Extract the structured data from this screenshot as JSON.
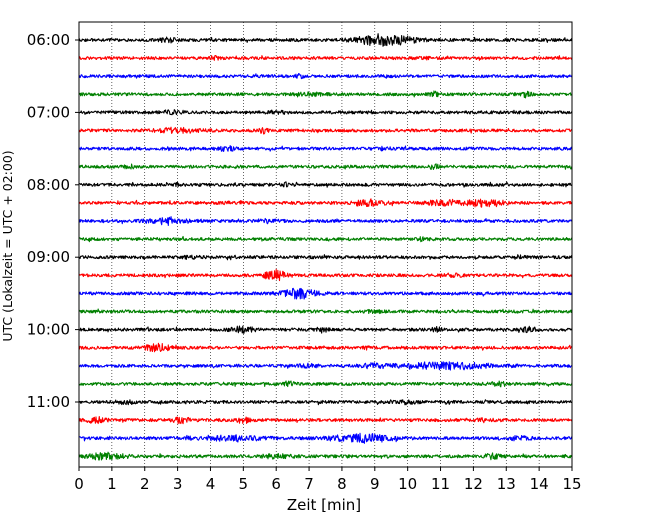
{
  "chart_data": {
    "type": "line",
    "title": "",
    "xlabel": "Zeit  [min]",
    "ylabel": "UTC (Lokalzeit = UTC + 02:00)",
    "xlim": [
      0,
      15
    ],
    "x_ticks": [
      "0",
      "1",
      "2",
      "3",
      "4",
      "5",
      "6",
      "7",
      "8",
      "9",
      "10",
      "11",
      "12",
      "13",
      "14",
      "15"
    ],
    "y_tick_labels": [
      "06:00",
      "07:00",
      "08:00",
      "09:00",
      "10:00",
      "11:00"
    ],
    "grid": "vertical dotted lines at each minute",
    "line_minutes": 15,
    "trace_colors": [
      "#000000",
      "#ff0000",
      "#0000ff",
      "#008000"
    ],
    "traces": [
      {
        "start": "06:00",
        "color": "#000000",
        "events": [
          [
            9.3,
            6.0,
            0.6
          ],
          [
            2.7,
            1.6,
            0.2
          ]
        ]
      },
      {
        "start": "06:15",
        "color": "#ff0000",
        "events": [
          [
            4.1,
            1.5,
            0.1
          ],
          [
            10.5,
            1.4,
            0.1
          ]
        ]
      },
      {
        "start": "06:30",
        "color": "#0000ff",
        "events": [
          [
            6.7,
            1.3,
            0.1
          ]
        ]
      },
      {
        "start": "06:45",
        "color": "#008000",
        "events": [
          [
            10.8,
            2.2,
            0.1
          ],
          [
            13.6,
            2.5,
            0.1
          ],
          [
            7.0,
            1.3,
            0.3
          ]
        ]
      },
      {
        "start": "07:00",
        "color": "#000000",
        "events": [
          [
            2.8,
            2.2,
            0.2
          ],
          [
            6.0,
            1.4,
            0.2
          ]
        ]
      },
      {
        "start": "07:15",
        "color": "#ff0000",
        "events": [
          [
            3.0,
            2.2,
            0.5
          ],
          [
            5.6,
            2.0,
            0.1
          ]
        ]
      },
      {
        "start": "07:30",
        "color": "#0000ff",
        "events": [
          [
            4.5,
            2.8,
            0.15
          ],
          [
            9.3,
            1.4,
            0.1
          ]
        ]
      },
      {
        "start": "07:45",
        "color": "#008000",
        "events": [
          [
            1.5,
            1.8,
            0.1
          ],
          [
            10.8,
            2.2,
            0.1
          ]
        ]
      },
      {
        "start": "08:00",
        "color": "#000000",
        "events": [
          [
            3.0,
            1.5,
            0.1
          ],
          [
            6.3,
            2.0,
            0.1
          ]
        ]
      },
      {
        "start": "08:15",
        "color": "#ff0000",
        "events": [
          [
            8.8,
            3.2,
            0.3
          ],
          [
            11.1,
            2.6,
            0.4
          ],
          [
            12.4,
            3.6,
            0.4
          ],
          [
            4.7,
            1.5,
            0.2
          ]
        ]
      },
      {
        "start": "08:30",
        "color": "#0000ff",
        "events": [
          [
            2.7,
            3.4,
            0.4
          ],
          [
            5.8,
            1.8,
            0.2
          ]
        ]
      },
      {
        "start": "08:45",
        "color": "#008000",
        "events": [
          [
            10.5,
            1.8,
            0.15
          ]
        ]
      },
      {
        "start": "09:00",
        "color": "#000000",
        "events": [
          [
            13.4,
            1.6,
            0.1
          ],
          [
            3.4,
            1.3,
            0.2
          ]
        ]
      },
      {
        "start": "09:15",
        "color": "#ff0000",
        "events": [
          [
            6.0,
            5.0,
            0.25
          ],
          [
            11.4,
            1.3,
            0.2
          ]
        ]
      },
      {
        "start": "09:30",
        "color": "#0000ff",
        "events": [
          [
            6.7,
            4.8,
            0.35
          ]
        ]
      },
      {
        "start": "09:45",
        "color": "#008000",
        "events": [
          [
            9.0,
            1.3,
            0.2
          ]
        ]
      },
      {
        "start": "10:00",
        "color": "#000000",
        "events": [
          [
            5.0,
            3.0,
            0.25
          ],
          [
            7.4,
            1.8,
            0.15
          ],
          [
            13.7,
            2.6,
            0.15
          ],
          [
            10.9,
            1.7,
            0.1
          ]
        ]
      },
      {
        "start": "10:15",
        "color": "#ff0000",
        "events": [
          [
            2.4,
            3.8,
            0.25
          ],
          [
            8.8,
            1.6,
            0.1
          ]
        ]
      },
      {
        "start": "10:30",
        "color": "#0000ff",
        "events": [
          [
            11.2,
            3.2,
            1.0
          ],
          [
            9.0,
            1.8,
            0.3
          ],
          [
            7.0,
            1.4,
            0.2
          ]
        ]
      },
      {
        "start": "10:45",
        "color": "#008000",
        "events": [
          [
            6.4,
            2.8,
            0.1
          ],
          [
            12.8,
            1.6,
            0.2
          ]
        ]
      },
      {
        "start": "11:00",
        "color": "#000000",
        "events": [
          [
            1.4,
            1.5,
            0.2
          ],
          [
            10.0,
            1.5,
            0.2
          ]
        ]
      },
      {
        "start": "11:15",
        "color": "#ff0000",
        "events": [
          [
            0.5,
            3.2,
            0.2
          ],
          [
            3.1,
            2.8,
            0.2
          ],
          [
            5.0,
            2.6,
            0.15
          ],
          [
            12.4,
            1.7,
            0.2
          ]
        ]
      },
      {
        "start": "11:30",
        "color": "#0000ff",
        "events": [
          [
            4.6,
            2.0,
            0.8
          ],
          [
            8.6,
            4.2,
            0.6
          ],
          [
            13.3,
            1.5,
            0.3
          ]
        ]
      },
      {
        "start": "11:45",
        "color": "#008000",
        "events": [
          [
            0.8,
            3.4,
            0.4
          ],
          [
            12.6,
            3.4,
            0.15
          ],
          [
            6.0,
            1.4,
            0.4
          ]
        ]
      }
    ]
  }
}
